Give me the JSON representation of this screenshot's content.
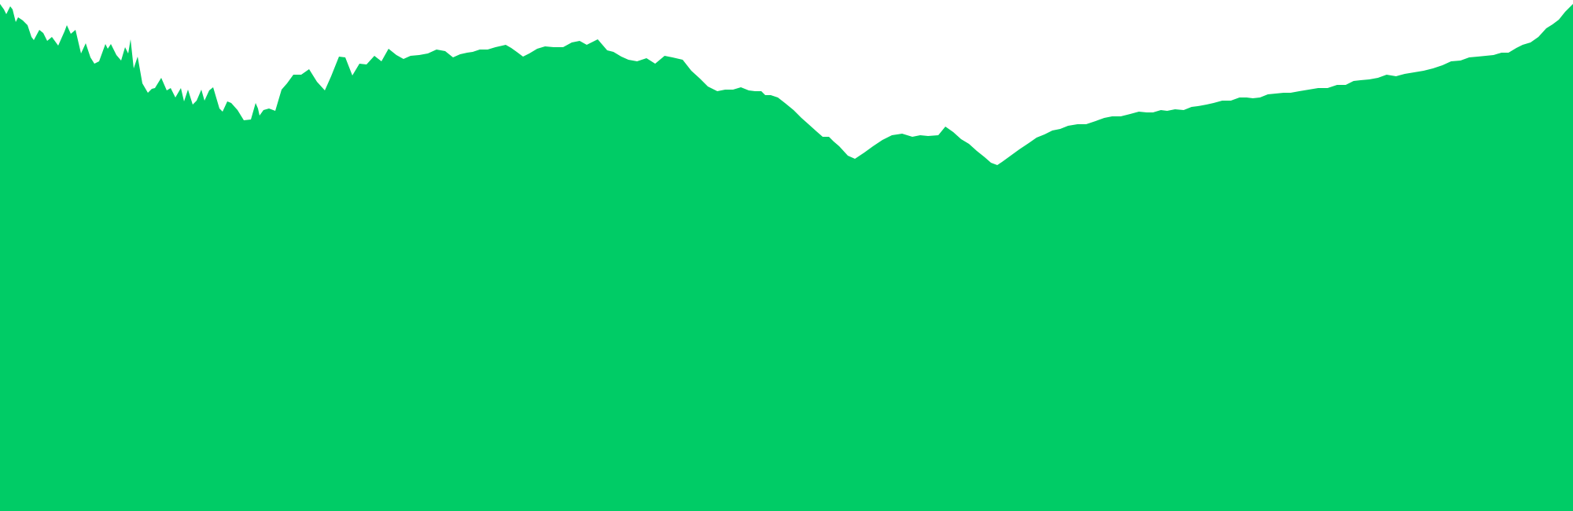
{
  "chart_data": {
    "type": "area",
    "title": "",
    "xlabel": "",
    "ylabel": "",
    "ylim": [
      0,
      650
    ],
    "grid": false,
    "legend": "none",
    "series": [
      {
        "color": "#00cc66",
        "points": [
          [
            0,
            645
          ],
          [
            5,
            638
          ],
          [
            8,
            632
          ],
          [
            13,
            642
          ],
          [
            16,
            638
          ],
          [
            20,
            622
          ],
          [
            23,
            628
          ],
          [
            29,
            624
          ],
          [
            35,
            618
          ],
          [
            40,
            603
          ],
          [
            43,
            599
          ],
          [
            50,
            612
          ],
          [
            55,
            608
          ],
          [
            60,
            598
          ],
          [
            66,
            603
          ],
          [
            74,
            592
          ],
          [
            82,
            610
          ],
          [
            85,
            618
          ],
          [
            90,
            607
          ],
          [
            96,
            612
          ],
          [
            103,
            582
          ],
          [
            109,
            595
          ],
          [
            115,
            577
          ],
          [
            120,
            569
          ],
          [
            126,
            572
          ],
          [
            134,
            594
          ],
          [
            137,
            588
          ],
          [
            141,
            594
          ],
          [
            148,
            580
          ],
          [
            154,
            573
          ],
          [
            159,
            590
          ],
          [
            163,
            582
          ],
          [
            166,
            600
          ],
          [
            170,
            563
          ],
          [
            175,
            578
          ],
          [
            181,
            544
          ],
          [
            188,
            532
          ],
          [
            193,
            537
          ],
          [
            197,
            538
          ],
          [
            205,
            551
          ],
          [
            212,
            535
          ],
          [
            217,
            538
          ],
          [
            223,
            526
          ],
          [
            230,
            538
          ],
          [
            234,
            521
          ],
          [
            239,
            536
          ],
          [
            245,
            517
          ],
          [
            250,
            522
          ],
          [
            256,
            536
          ],
          [
            260,
            522
          ],
          [
            266,
            535
          ],
          [
            271,
            539
          ],
          [
            279,
            512
          ],
          [
            283,
            508
          ],
          [
            289,
            521
          ],
          [
            294,
            519
          ],
          [
            302,
            510
          ],
          [
            310,
            497
          ],
          [
            319,
            498
          ],
          [
            325,
            519
          ],
          [
            328,
            512
          ],
          [
            330,
            503
          ],
          [
            335,
            510
          ],
          [
            342,
            512
          ],
          [
            350,
            509
          ],
          [
            358,
            536
          ],
          [
            365,
            544
          ],
          [
            373,
            555
          ],
          [
            383,
            555
          ],
          [
            393,
            562
          ],
          [
            403,
            546
          ],
          [
            413,
            535
          ],
          [
            421,
            553
          ],
          [
            431,
            578
          ],
          [
            439,
            577
          ],
          [
            448,
            554
          ],
          [
            457,
            569
          ],
          [
            466,
            568
          ],
          [
            476,
            579
          ],
          [
            485,
            572
          ],
          [
            494,
            588
          ],
          [
            504,
            580
          ],
          [
            513,
            575
          ],
          [
            522,
            579
          ],
          [
            533,
            580
          ],
          [
            544,
            582
          ],
          [
            555,
            587
          ],
          [
            566,
            585
          ],
          [
            576,
            577
          ],
          [
            585,
            581
          ],
          [
            594,
            583
          ],
          [
            601,
            584
          ],
          [
            610,
            587
          ],
          [
            620,
            587
          ],
          [
            630,
            590
          ],
          [
            643,
            593
          ],
          [
            650,
            589
          ],
          [
            657,
            584
          ],
          [
            665,
            578
          ],
          [
            673,
            582
          ],
          [
            683,
            588
          ],
          [
            693,
            591
          ],
          [
            704,
            590
          ],
          [
            716,
            590
          ],
          [
            727,
            596
          ],
          [
            737,
            598
          ],
          [
            746,
            593
          ],
          [
            760,
            600
          ],
          [
            772,
            586
          ],
          [
            780,
            584
          ],
          [
            790,
            578
          ],
          [
            799,
            574
          ],
          [
            810,
            572
          ],
          [
            822,
            576
          ],
          [
            833,
            569
          ],
          [
            845,
            579
          ],
          [
            855,
            577
          ],
          [
            868,
            574
          ],
          [
            879,
            560
          ],
          [
            890,
            550
          ],
          [
            900,
            540
          ],
          [
            912,
            534
          ],
          [
            922,
            536
          ],
          [
            932,
            536
          ],
          [
            942,
            539
          ],
          [
            952,
            535
          ],
          [
            960,
            534
          ],
          [
            968,
            534
          ],
          [
            973,
            529
          ],
          [
            980,
            529
          ],
          [
            989,
            526
          ],
          [
            998,
            519
          ],
          [
            1009,
            510
          ],
          [
            1019,
            500
          ],
          [
            1028,
            492
          ],
          [
            1038,
            483
          ],
          [
            1046,
            476
          ],
          [
            1054,
            476
          ],
          [
            1060,
            470
          ],
          [
            1067,
            464
          ],
          [
            1078,
            452
          ],
          [
            1087,
            448
          ],
          [
            1099,
            456
          ],
          [
            1110,
            464
          ],
          [
            1122,
            472
          ],
          [
            1134,
            478
          ],
          [
            1147,
            480
          ],
          [
            1160,
            476
          ],
          [
            1170,
            478
          ],
          [
            1180,
            477
          ],
          [
            1193,
            478
          ],
          [
            1202,
            489
          ],
          [
            1212,
            482
          ],
          [
            1222,
            473
          ],
          [
            1232,
            467
          ],
          [
            1242,
            458
          ],
          [
            1252,
            450
          ],
          [
            1260,
            443
          ],
          [
            1268,
            440
          ],
          [
            1274,
            444
          ],
          [
            1285,
            452
          ],
          [
            1296,
            460
          ],
          [
            1308,
            468
          ],
          [
            1318,
            475
          ],
          [
            1328,
            479
          ],
          [
            1338,
            484
          ],
          [
            1348,
            486
          ],
          [
            1358,
            490
          ],
          [
            1370,
            492
          ],
          [
            1381,
            492
          ],
          [
            1393,
            496
          ],
          [
            1404,
            500
          ],
          [
            1414,
            502
          ],
          [
            1425,
            502
          ],
          [
            1437,
            505
          ],
          [
            1448,
            508
          ],
          [
            1458,
            507
          ],
          [
            1466,
            507
          ],
          [
            1476,
            510
          ],
          [
            1484,
            509
          ],
          [
            1494,
            511
          ],
          [
            1505,
            510
          ],
          [
            1515,
            514
          ],
          [
            1523,
            515
          ],
          [
            1534,
            517
          ],
          [
            1543,
            519
          ],
          [
            1554,
            522
          ],
          [
            1565,
            522
          ],
          [
            1576,
            526
          ],
          [
            1585,
            526
          ],
          [
            1593,
            525
          ],
          [
            1602,
            526
          ],
          [
            1612,
            530
          ],
          [
            1622,
            531
          ],
          [
            1632,
            532
          ],
          [
            1641,
            532
          ],
          [
            1652,
            534
          ],
          [
            1664,
            536
          ],
          [
            1676,
            538
          ],
          [
            1688,
            538
          ],
          [
            1700,
            542
          ],
          [
            1711,
            542
          ],
          [
            1721,
            547
          ],
          [
            1730,
            548
          ],
          [
            1741,
            549
          ],
          [
            1752,
            551
          ],
          [
            1763,
            555
          ],
          [
            1775,
            553
          ],
          [
            1786,
            556
          ],
          [
            1798,
            558
          ],
          [
            1810,
            560
          ],
          [
            1822,
            563
          ],
          [
            1834,
            567
          ],
          [
            1845,
            572
          ],
          [
            1857,
            573
          ],
          [
            1868,
            577
          ],
          [
            1879,
            578
          ],
          [
            1889,
            579
          ],
          [
            1899,
            580
          ],
          [
            1909,
            583
          ],
          [
            1918,
            583
          ],
          [
            1928,
            589
          ],
          [
            1936,
            593
          ],
          [
            1946,
            596
          ],
          [
            1956,
            603
          ],
          [
            1966,
            614
          ],
          [
            1974,
            619
          ],
          [
            1982,
            625
          ],
          [
            1990,
            635
          ],
          [
            2000,
            645
          ]
        ]
      }
    ]
  }
}
